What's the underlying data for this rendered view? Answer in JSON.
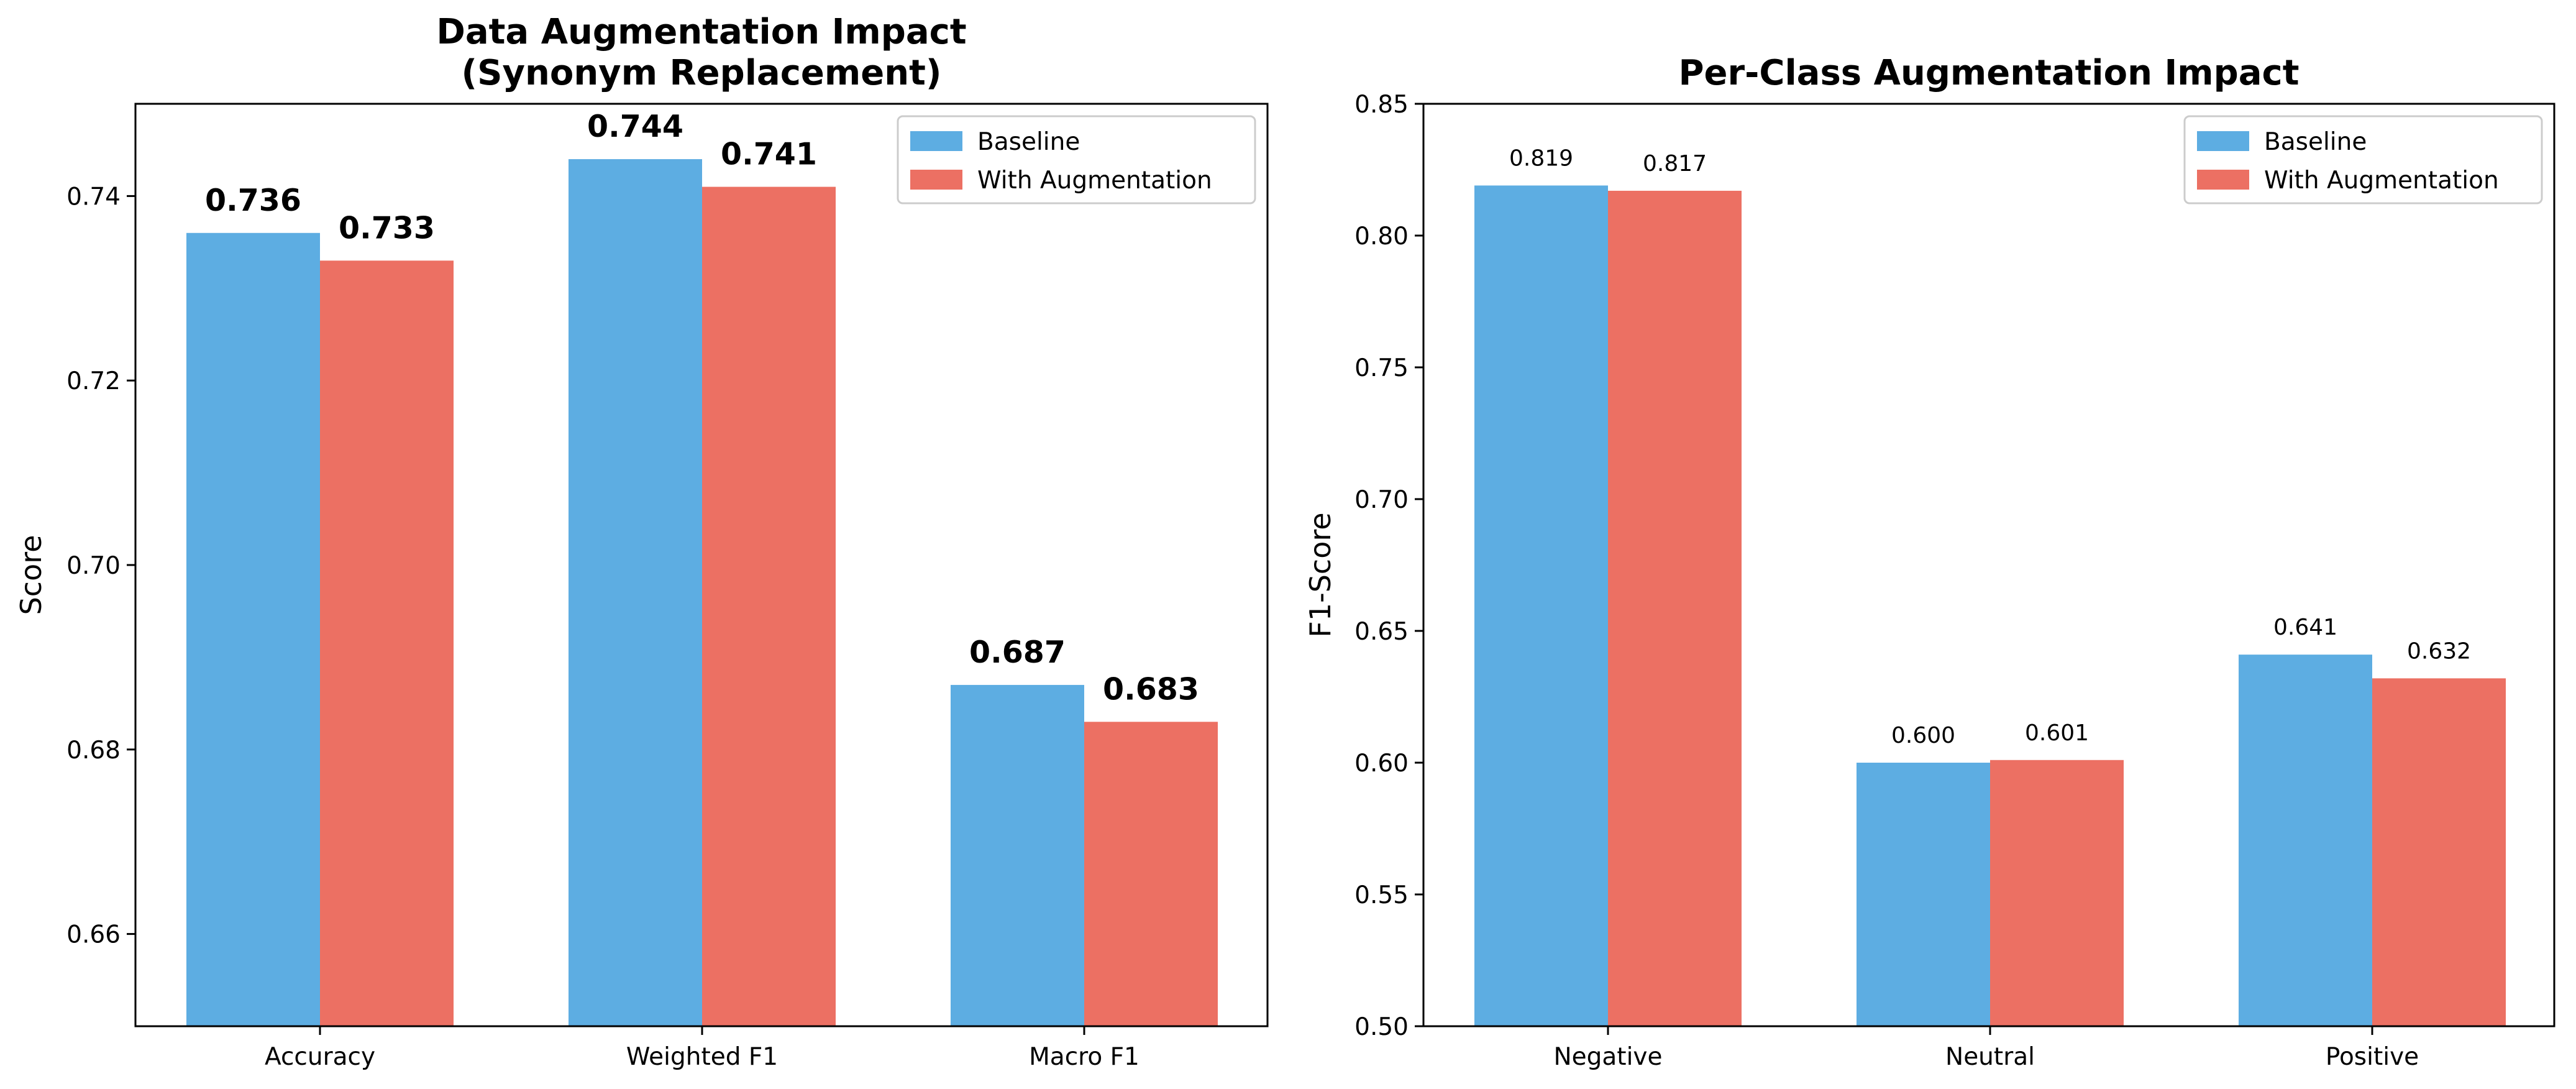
{
  "colors": {
    "baseline": "#5dade2",
    "augmented": "#ec7063"
  },
  "chart_data": [
    {
      "type": "bar",
      "title": "Data Augmentation Impact\n(Synonym Replacement)",
      "title_lines": [
        "Data Augmentation Impact",
        "(Synonym Replacement)"
      ],
      "xlabel": "",
      "ylabel": "Score",
      "categories": [
        "Accuracy",
        "Weighted F1",
        "Macro F1"
      ],
      "series": [
        {
          "name": "Baseline",
          "values": [
            0.736,
            0.744,
            0.687
          ]
        },
        {
          "name": "With Augmentation",
          "values": [
            0.733,
            0.741,
            0.683
          ]
        }
      ],
      "ylim": [
        0.65,
        0.75
      ],
      "yticks": [
        "0.66",
        "0.68",
        "0.70",
        "0.72",
        "0.74"
      ],
      "data_labels": [
        [
          "0.736",
          "0.744",
          "0.687"
        ],
        [
          "0.733",
          "0.741",
          "0.683"
        ]
      ],
      "legend": "top-right",
      "grid": false
    },
    {
      "type": "bar",
      "title": "Per-Class Augmentation Impact",
      "title_lines": [
        "Per-Class Augmentation Impact"
      ],
      "xlabel": "",
      "ylabel": "F1-Score",
      "categories": [
        "Negative",
        "Neutral",
        "Positive"
      ],
      "series": [
        {
          "name": "Baseline",
          "values": [
            0.819,
            0.6,
            0.641
          ]
        },
        {
          "name": "With Augmentation",
          "values": [
            0.817,
            0.601,
            0.632
          ]
        }
      ],
      "ylim": [
        0.5,
        0.85
      ],
      "yticks": [
        "0.50",
        "0.55",
        "0.60",
        "0.65",
        "0.70",
        "0.75",
        "0.80",
        "0.85"
      ],
      "data_labels": [
        [
          "0.819",
          "0.600",
          "0.641"
        ],
        [
          "0.817",
          "0.601",
          "0.632"
        ]
      ],
      "legend": "top-right",
      "grid": false
    }
  ]
}
